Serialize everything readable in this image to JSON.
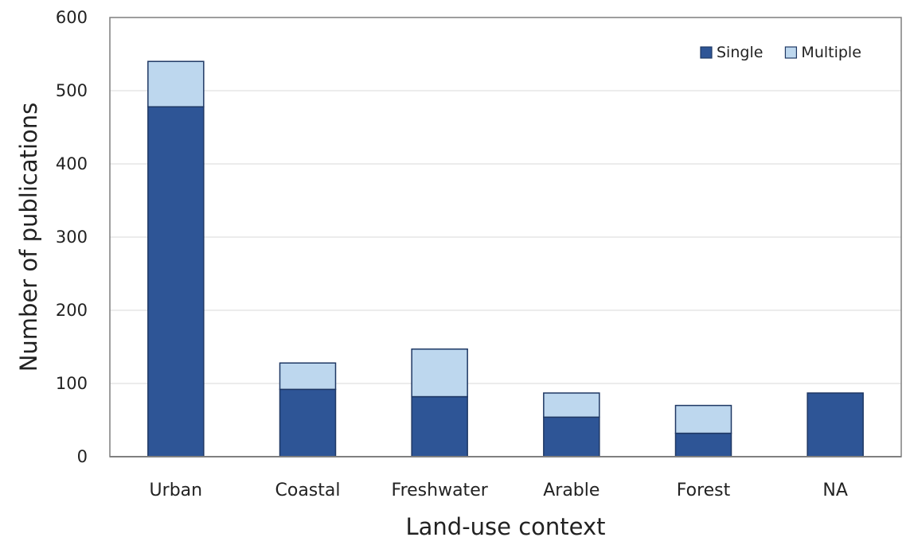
{
  "chart_data": {
    "type": "bar",
    "stacked": true,
    "categories": [
      "Urban",
      "Coastal",
      "Freshwater",
      "Arable",
      "Forest",
      "NA"
    ],
    "series": [
      {
        "name": "Single",
        "values": [
          478,
          92,
          82,
          54,
          32,
          87
        ],
        "color": "#2e5596"
      },
      {
        "name": "Multiple",
        "values": [
          62,
          36,
          65,
          33,
          38,
          0
        ],
        "color": "#bdd7ee"
      }
    ],
    "title": "",
    "xlabel": "Land-use context",
    "ylabel": "Number of publications",
    "ylim": [
      0,
      600
    ],
    "yticks": [
      0,
      100,
      200,
      300,
      400,
      500,
      600
    ],
    "grid": true,
    "legend": "top-right"
  }
}
